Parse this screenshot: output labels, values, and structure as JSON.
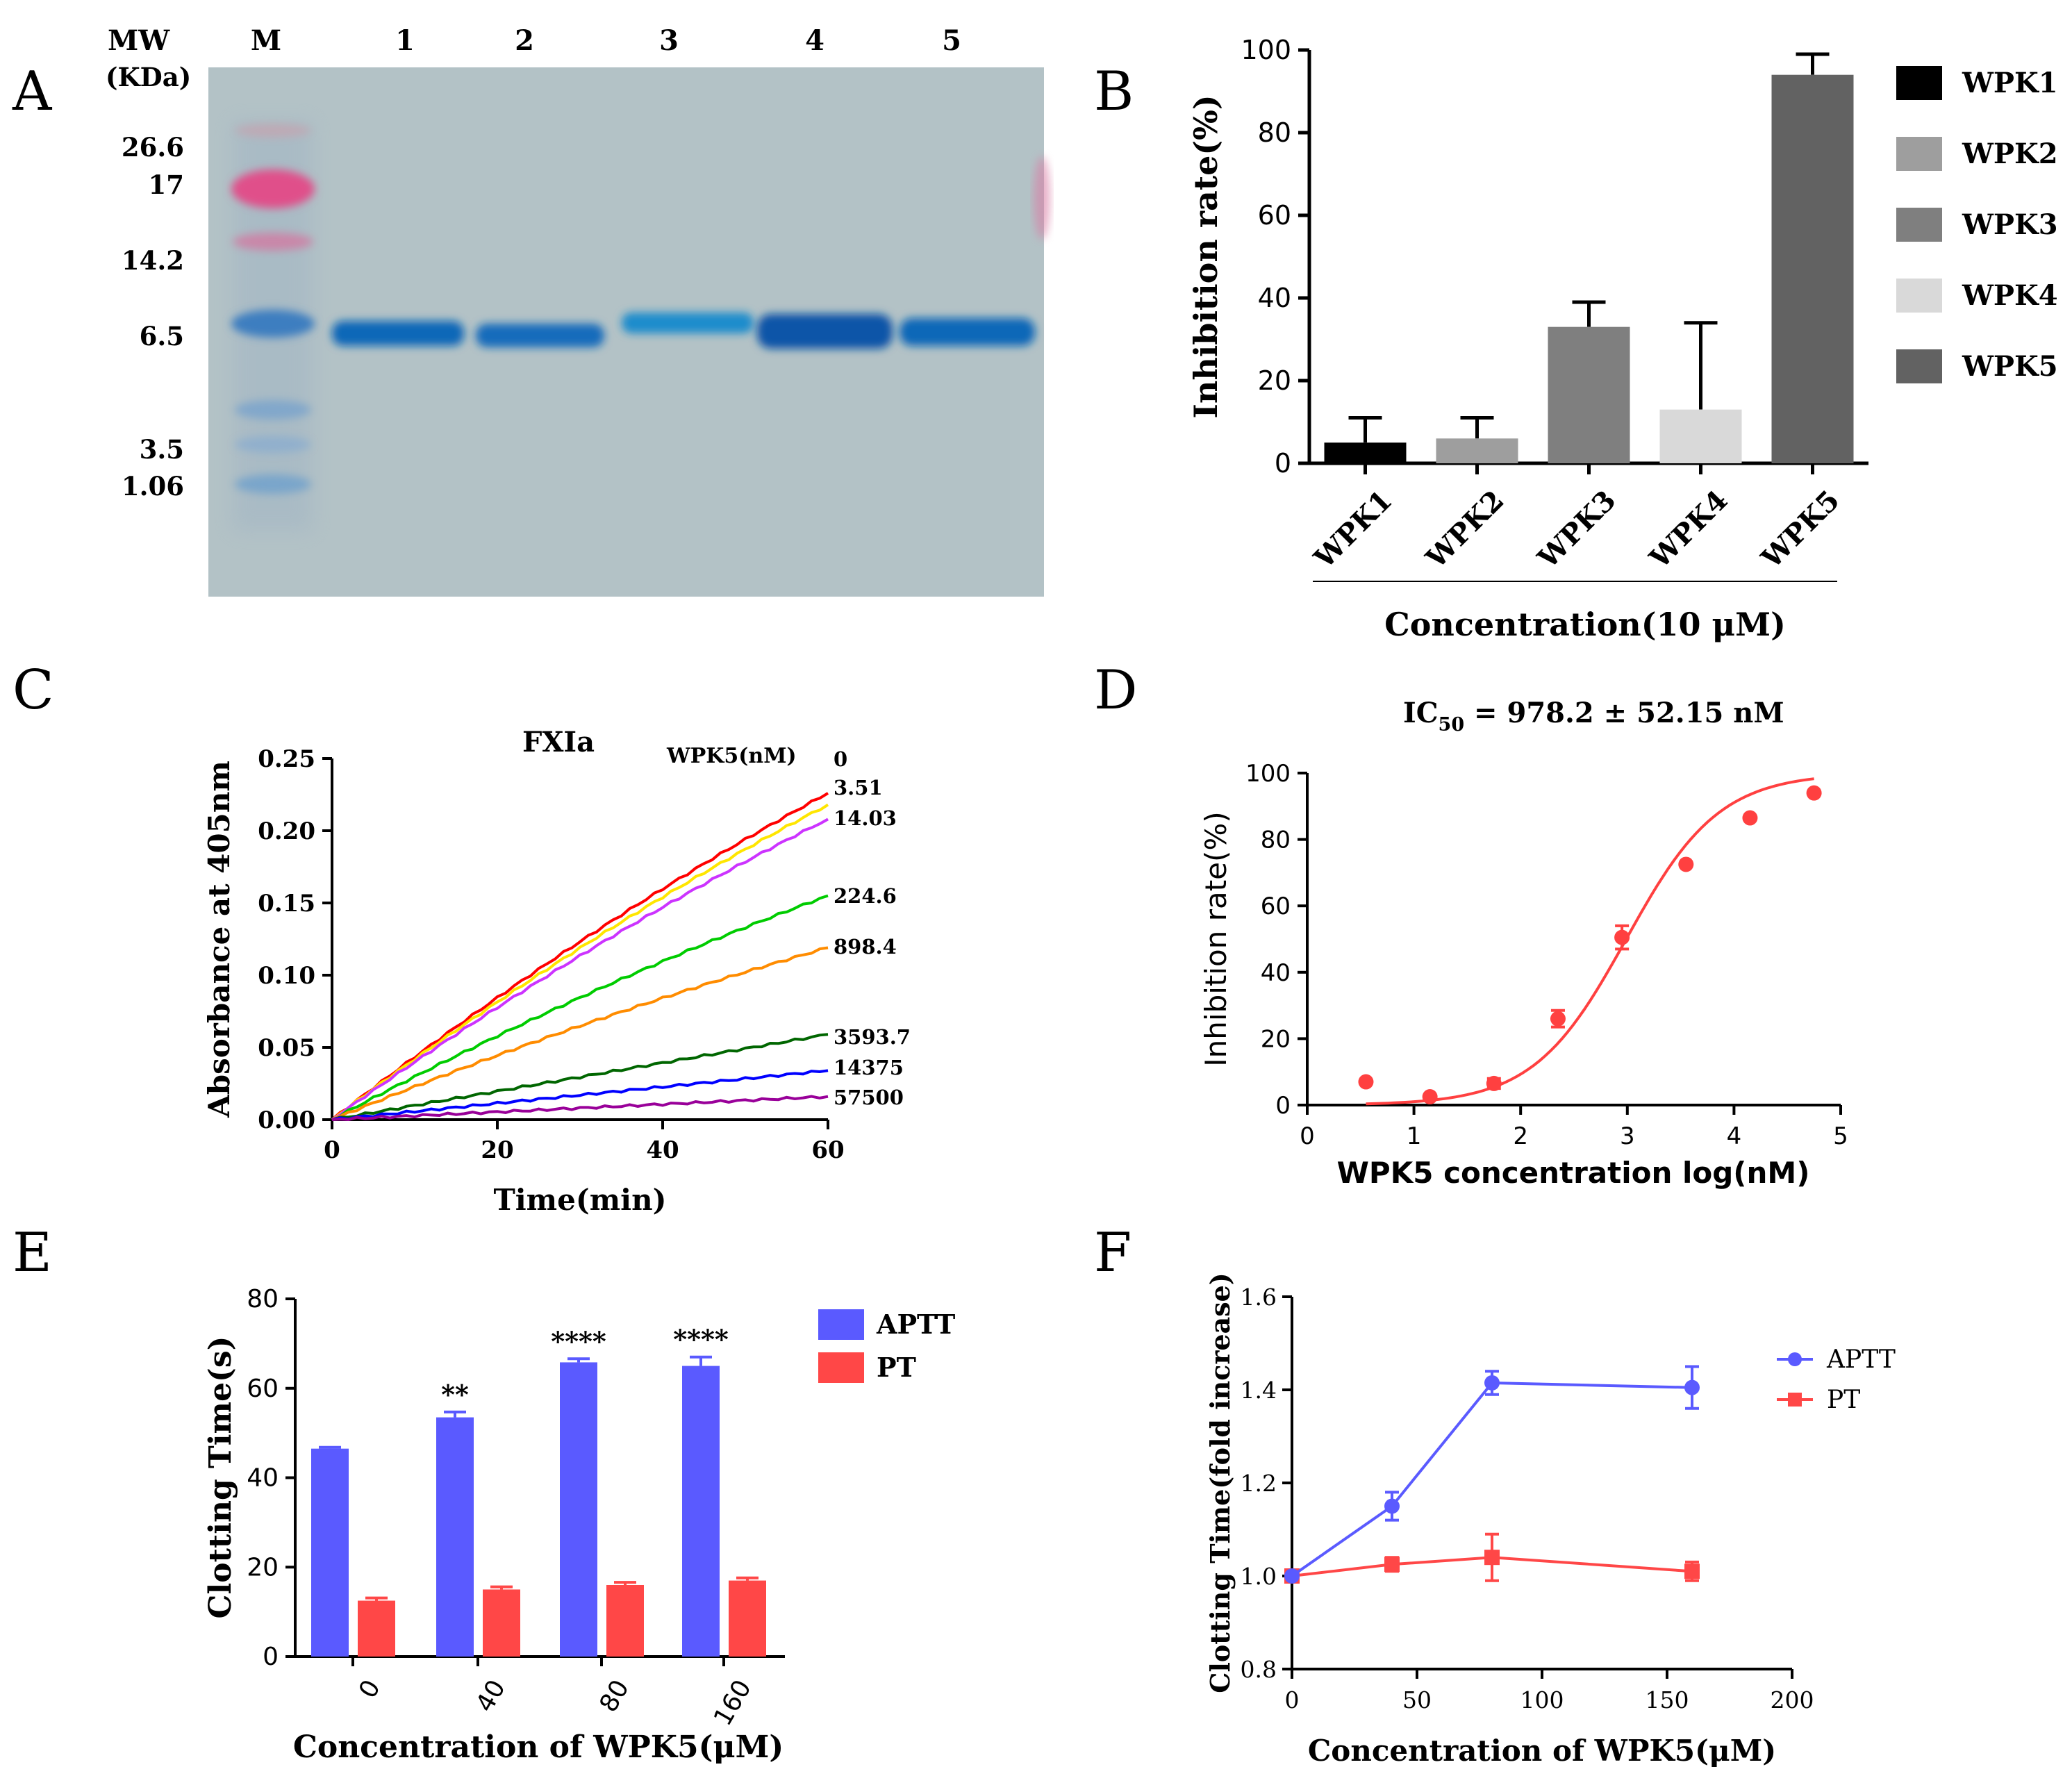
{
  "panels": {
    "A": {
      "letter": "A",
      "mw_label": "MW",
      "kda_label": "(KDa)",
      "lane_labels": [
        "M",
        "1",
        "2",
        "3",
        "4",
        "5"
      ],
      "marker_labels": [
        "26.6",
        "17",
        "14.2",
        "6.5",
        "3.5",
        "1.06"
      ],
      "colors": {
        "gel": "#b3c2c6",
        "band": "#0f67b8",
        "marker_pink": "#e0508a"
      }
    },
    "B": {
      "letter": "B"
    },
    "C": {
      "letter": "C",
      "legend_title": "WPK5(nM)"
    },
    "D": {
      "letter": "D",
      "ic50": {
        "prefix": "IC",
        "sub": "50",
        "value": " = 978.2 ± 52.15 nM"
      }
    },
    "E": {
      "letter": "E"
    },
    "F": {
      "letter": "F"
    }
  },
  "chart_data": [
    {
      "id": "B",
      "type": "bar",
      "categories": [
        "WPK1",
        "WPK2",
        "WPK3",
        "WPK4",
        "WPK5"
      ],
      "values": [
        5,
        6,
        33,
        13,
        94
      ],
      "errors": [
        6,
        5,
        6,
        21,
        5
      ],
      "colors": [
        "#000000",
        "#9e9e9e",
        "#7f7f7f",
        "#d9d9d9",
        "#626262"
      ],
      "ylabel": "Inhibition rate(%)",
      "xlabel": "Concentration(10 μM)",
      "ylim": [
        0,
        100
      ],
      "yticks": [
        "0",
        "20",
        "40",
        "60",
        "80",
        "100"
      ],
      "legend": [
        "WPK1",
        "WPK2",
        "WPK3",
        "WPK4",
        "WPK5"
      ],
      "legend_position": "right"
    },
    {
      "id": "C",
      "type": "line",
      "title": "FXIa",
      "xlabel": "Time(min)",
      "ylabel": "Absorbance at 405nm",
      "xlim": [
        0,
        60
      ],
      "ylim": [
        0,
        0.25
      ],
      "xticks": [
        "0",
        "20",
        "40",
        "60"
      ],
      "yticks": [
        "0.00",
        "0.05",
        "0.10",
        "0.15",
        "0.20",
        "0.25"
      ],
      "series": [
        {
          "name": "0",
          "end": 0.226,
          "color": "#ff0000"
        },
        {
          "name": "3.51",
          "end": 0.218,
          "color": "#ffe600"
        },
        {
          "name": "14.03",
          "end": 0.208,
          "color": "#cc33ff"
        },
        {
          "name": "224.6",
          "end": 0.155,
          "color": "#00cc00"
        },
        {
          "name": "898.4",
          "end": 0.119,
          "color": "#ff8c00"
        },
        {
          "name": "3593.7",
          "end": 0.059,
          "color": "#006600"
        },
        {
          "name": "14375",
          "end": 0.034,
          "color": "#0000ff"
        },
        {
          "name": "57500",
          "end": 0.016,
          "color": "#990099"
        }
      ]
    },
    {
      "id": "D",
      "type": "scatter",
      "xlabel": "WPK5 concentration log(nM)",
      "ylabel": "Inhibition rate(%)",
      "xlim": [
        0,
        5
      ],
      "ylim": [
        0,
        100
      ],
      "xticks": [
        "0",
        "1",
        "2",
        "3",
        "4",
        "5"
      ],
      "yticks": [
        "0",
        "20",
        "40",
        "60",
        "80",
        "100"
      ],
      "color": "#ff4040",
      "points": [
        {
          "x": 0.55,
          "y": 7,
          "err": 0
        },
        {
          "x": 1.15,
          "y": 2.5,
          "err": 0
        },
        {
          "x": 1.75,
          "y": 6.5,
          "err": 1.5
        },
        {
          "x": 2.35,
          "y": 26,
          "err": 2.5
        },
        {
          "x": 2.95,
          "y": 50.5,
          "err": 3.5
        },
        {
          "x": 3.55,
          "y": 72.5,
          "err": 0
        },
        {
          "x": 4.15,
          "y": 86.5,
          "err": 0
        },
        {
          "x": 4.75,
          "y": 94,
          "err": 0
        }
      ],
      "fit": {
        "ic50_log": 2.99,
        "hill": 1.0,
        "x_from": 0.55,
        "x_to": 4.75
      }
    },
    {
      "id": "E",
      "type": "bar",
      "categories": [
        "0",
        "40",
        "80",
        "160"
      ],
      "xlabel": "Concentration of WPK5(μM)",
      "ylabel": "Clotting Time(s)",
      "ylim": [
        0,
        80
      ],
      "yticks": [
        "0",
        "20",
        "40",
        "60",
        "80"
      ],
      "series": [
        {
          "name": "APTT",
          "values": [
            46.5,
            53.5,
            65.8,
            65
          ],
          "errors": [
            0.3,
            1.2,
            0.8,
            2
          ],
          "color": "#5a5aff"
        },
        {
          "name": "PT",
          "values": [
            12.5,
            15,
            16,
            17
          ],
          "errors": [
            0.6,
            0.6,
            0.6,
            0.6
          ],
          "color": "#ff4747"
        }
      ],
      "annotations": [
        "",
        "**",
        "****",
        "****"
      ],
      "legend_position": "right"
    },
    {
      "id": "F",
      "type": "line",
      "xlabel": "Concentration of WPK5(μM)",
      "ylabel": "Clotting Time(fold increase)",
      "xlim": [
        0,
        200
      ],
      "ylim": [
        0.8,
        1.6
      ],
      "xticks": [
        "0",
        "50",
        "100",
        "150",
        "200"
      ],
      "yticks": [
        "0.8",
        "1.0",
        "1.2",
        "1.4",
        "1.6"
      ],
      "x": [
        0,
        40,
        80,
        160
      ],
      "series": [
        {
          "name": "APTT",
          "values": [
            1.0,
            1.15,
            1.415,
            1.405
          ],
          "errors": [
            0,
            0.03,
            0.025,
            0.045
          ],
          "color": "#5a5aff",
          "marker": "circle"
        },
        {
          "name": "PT",
          "values": [
            1.0,
            1.025,
            1.04,
            1.01
          ],
          "errors": [
            0,
            0.015,
            0.05,
            0.02
          ],
          "color": "#ff4747",
          "marker": "square"
        }
      ],
      "legend_position": "top-right"
    }
  ]
}
